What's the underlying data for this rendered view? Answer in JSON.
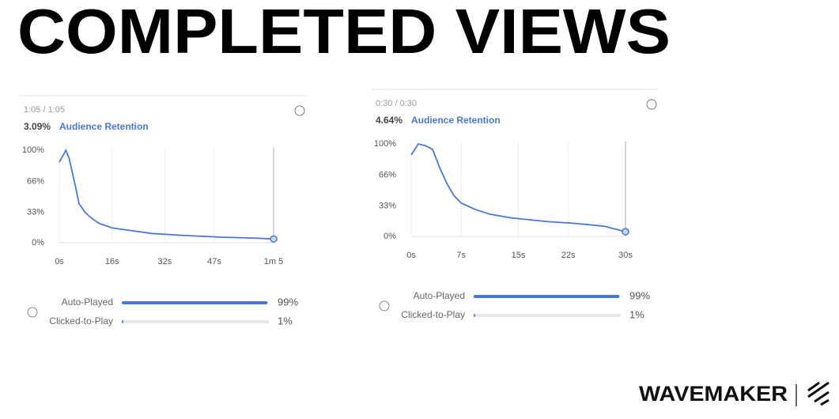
{
  "title": "COMPLETED VIEWS",
  "logo": "WAVEMAKER",
  "chart_data": [
    {
      "type": "line",
      "header": "1:05 / 1:05",
      "stat": "3.09%",
      "subtitle": "Audience Retention",
      "color": "#4a78d6",
      "x": [
        0,
        2,
        3,
        5,
        6,
        8,
        10,
        12,
        16,
        20,
        28,
        37,
        49,
        59,
        65
      ],
      "values": [
        87,
        100,
        91,
        59,
        42,
        32,
        26,
        21,
        16,
        14,
        10,
        8,
        6,
        5,
        4
      ],
      "xlim": [
        0,
        65
      ],
      "xticks": [
        {
          "value": 0,
          "label": "0s"
        },
        {
          "value": 16,
          "label": "16s"
        },
        {
          "value": 32,
          "label": "32s"
        },
        {
          "value": 47,
          "label": "47s"
        },
        {
          "value": 65,
          "label": "1m 5"
        }
      ],
      "ylim": [
        0,
        100
      ],
      "yticks": [
        {
          "value": 0,
          "label": "0%"
        },
        {
          "value": 33,
          "label": "33%"
        },
        {
          "value": 66,
          "label": "66%"
        },
        {
          "value": 100,
          "label": "100%"
        }
      ],
      "breakdown": {
        "categories": [
          "Auto-Played",
          "Clicked-to-Play"
        ],
        "values": [
          99,
          1
        ],
        "value_labels": [
          "99%",
          "1%"
        ]
      }
    },
    {
      "type": "line",
      "header": "0:30 / 0:30",
      "stat": "4.64%",
      "subtitle": "Audience Retention",
      "color": "#4a78d6",
      "x": [
        0,
        1,
        2,
        3,
        4,
        5,
        6,
        7,
        9,
        11,
        14,
        19,
        23,
        27,
        30
      ],
      "values": [
        88,
        100,
        98,
        94,
        74,
        57,
        44,
        36,
        29,
        24,
        20,
        16,
        14,
        11,
        5
      ],
      "xlim": [
        0,
        30
      ],
      "xticks": [
        {
          "value": 0,
          "label": "0s"
        },
        {
          "value": 7,
          "label": "7s"
        },
        {
          "value": 15,
          "label": "15s"
        },
        {
          "value": 22,
          "label": "22s"
        },
        {
          "value": 30,
          "label": "30s"
        }
      ],
      "ylim": [
        0,
        100
      ],
      "yticks": [
        {
          "value": 0,
          "label": "0%"
        },
        {
          "value": 33,
          "label": "33%"
        },
        {
          "value": 66,
          "label": "66%"
        },
        {
          "value": 100,
          "label": "100%"
        }
      ],
      "breakdown": {
        "categories": [
          "Auto-Played",
          "Clicked-to-Play"
        ],
        "values": [
          99,
          1
        ],
        "value_labels": [
          "99%",
          "1%"
        ]
      }
    }
  ]
}
